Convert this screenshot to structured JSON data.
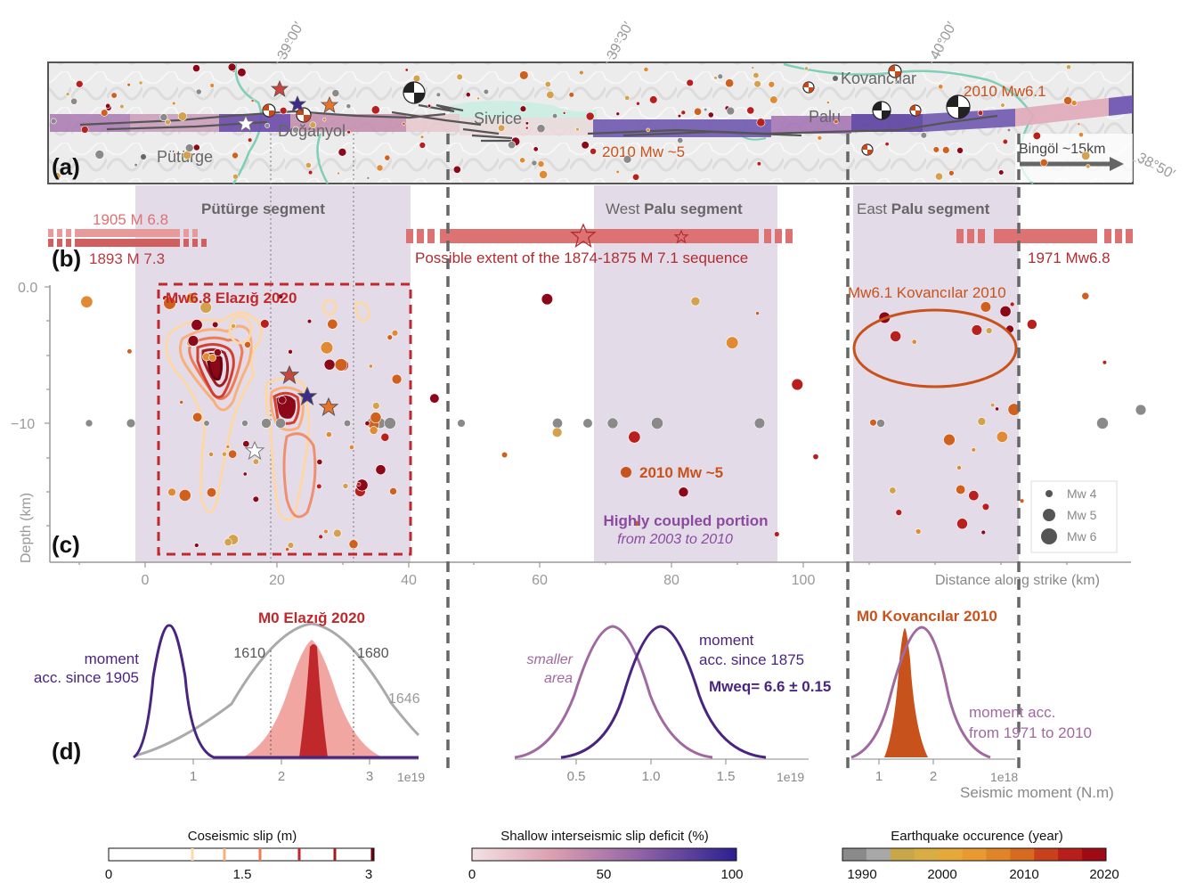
{
  "colors": {
    "purple_dark": "#4a2580",
    "purple_mid": "#a06aa0",
    "purple_light": "#e4dbe8",
    "red_text": "#c0282c",
    "orange_text": "#c8521c",
    "grey": "#8a8a8a",
    "salmon": "#dc7272",
    "river": "#7fcfb8",
    "star_orange": "#e8742c",
    "star_red": "#c8463c",
    "star_blue": "#3c2a8c"
  },
  "panel_labels": [
    "(a)",
    "(b)",
    "(c)",
    "(d)"
  ],
  "map": {
    "lat_labels": [
      "39°00′",
      "39°30′",
      "40°00′"
    ],
    "lon_label": "38°50′",
    "places": {
      "kovancilar": "Kovancılar",
      "sivrice": "Sivrice",
      "palu": "Palu",
      "doganyol": "Doğanyol",
      "puturge": "Pütürge"
    },
    "quake_2010_61": "2010 Mw6.1",
    "quake_2010_5": "2010 Mw ~5",
    "bingol": "Bingöl ~15km"
  },
  "segments": {
    "puturge": "Pütürge segment",
    "west_palu_prefix": "West ",
    "west_palu_bold": "Palu segment",
    "east_palu_prefix": "East ",
    "east_palu_bold": "Palu segment"
  },
  "historical": {
    "eq1905": "1905 M 6.8",
    "eq1893": "1893 M 7.3",
    "eq1874": "Possible extent of the 1874-1875 M 7.1 sequence",
    "eq1971": "1971 Mw6.8"
  },
  "depth_panel": {
    "ylabel": "Depth (km)",
    "xlabel": "Distance along strike (km)",
    "yticks": [
      "0.0",
      "−10"
    ],
    "xticks": [
      "0",
      "20",
      "40",
      "60",
      "80",
      "100"
    ],
    "elazig_box": "Mw6.8 Elazığ 2020",
    "kovancilar_box": "Mw6.1 Kovancılar 2010",
    "quake_2010_5": "2010 Mw ~5",
    "coupled_bold": "Highly coupled portion",
    "coupled_italic": "from 2003 to 2010",
    "size_legend": [
      "Mw 4",
      "Mw 5",
      "Mw 6"
    ]
  },
  "moment_panel": {
    "title_elazig": "M0 Elazığ 2020",
    "title_kovancilar": "M0 Kovancılar 2010",
    "acc1905": [
      "moment",
      "acc. since 1905"
    ],
    "acc1875": [
      "moment",
      "acc. since 1875"
    ],
    "acc1971": [
      "moment acc.",
      "from 1971 to 2010"
    ],
    "smaller_area": [
      "smaller",
      "area"
    ],
    "mweq": "Mweq= 6.6 ± 0.15",
    "years": [
      "1610",
      "1680",
      "1646"
    ],
    "xlabel": "Seismic moment (N.m)",
    "ticks1": [
      "1",
      "2",
      "3"
    ],
    "ticks2": [
      "0.5",
      "1.0",
      "1.5"
    ],
    "ticks3": [
      "1",
      "2"
    ],
    "exp1": "1e19",
    "exp2": "1e19",
    "exp3": "1e18"
  },
  "colorbars": {
    "coseismic": {
      "title": "Coseismic slip (m)",
      "ticks": [
        "0",
        "1.5",
        "3"
      ]
    },
    "interseismic": {
      "title": "Shallow interseismic slip deficit (%)",
      "ticks": [
        "0",
        "50",
        "100"
      ]
    },
    "occurrence": {
      "title": "Earthquake occurence (year)",
      "ticks": [
        "1990",
        "2000",
        "2010",
        "2020"
      ]
    }
  }
}
